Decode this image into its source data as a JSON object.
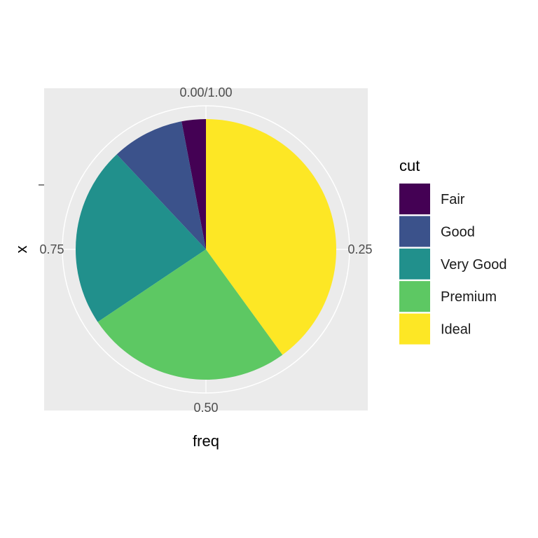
{
  "chart_data": {
    "type": "pie",
    "xlabel": "freq",
    "ylabel": "x",
    "theta_ticks": [
      {
        "value": 0,
        "label": "0.00/1.00"
      },
      {
        "value": 0.25,
        "label": "0.25"
      },
      {
        "value": 0.5,
        "label": "0.50"
      },
      {
        "value": 0.75,
        "label": "0.75"
      }
    ],
    "legend": {
      "title": "cut",
      "position": "right"
    },
    "categories": [
      "Fair",
      "Good",
      "Very Good",
      "Premium",
      "Ideal"
    ],
    "values": [
      0.03,
      0.09,
      0.224,
      0.256,
      0.4
    ],
    "colors": [
      "#440154",
      "#3B528B",
      "#21908C",
      "#5DC863",
      "#FDE725"
    ],
    "background": "#EBEBEB",
    "grid": true
  }
}
